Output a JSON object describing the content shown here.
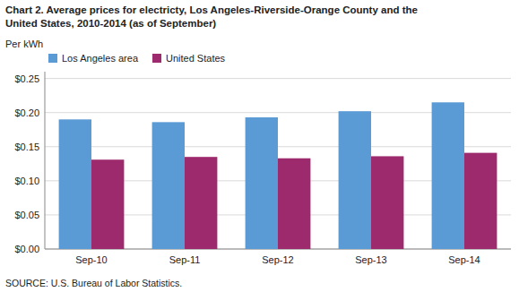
{
  "chart_data": {
    "type": "bar",
    "title": [
      "Chart 2. Average prices for electricty, Los Angeles-Riverside-Orange County and the",
      "United States, 2010-2014  (as of September)"
    ],
    "y_label": "Per kWh",
    "source": "SOURCE: U.S. Bureau of Labor Statistics.",
    "categories": [
      "Sep-10",
      "Sep-11",
      "Sep-12",
      "Sep-13",
      "Sep-14"
    ],
    "series": [
      {
        "name": "Los Angeles area",
        "color": "#5B9BD5",
        "values": [
          0.19,
          0.186,
          0.193,
          0.202,
          0.215
        ]
      },
      {
        "name": "United States",
        "color": "#9E2A6E",
        "values": [
          0.131,
          0.135,
          0.133,
          0.136,
          0.141
        ]
      }
    ],
    "ylim": [
      0.0,
      0.26
    ],
    "yticks": [
      {
        "value": 0.0,
        "label": "$0.00"
      },
      {
        "value": 0.05,
        "label": "$0.05"
      },
      {
        "value": 0.1,
        "label": "$0.10"
      },
      {
        "value": 0.15,
        "label": "$0.15"
      },
      {
        "value": 0.2,
        "label": "$0.20"
      },
      {
        "value": 0.25,
        "label": "$0.25"
      }
    ],
    "grid": true,
    "legend": "top-left"
  }
}
